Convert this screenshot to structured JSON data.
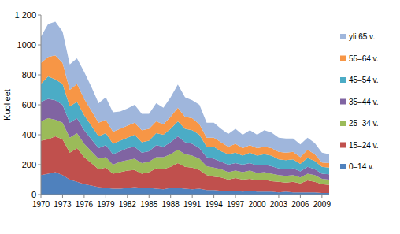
{
  "chart_data": {
    "type": "area",
    "stacked": true,
    "grid": false,
    "legend": "right",
    "y_label": "Kuolleet",
    "categories": [
      "1970",
      null,
      null,
      "1973",
      null,
      null,
      "1976",
      null,
      null,
      "1979",
      null,
      null,
      "1982",
      null,
      null,
      "1985",
      null,
      null,
      "1988",
      null,
      null,
      "1991",
      null,
      null,
      "1994",
      null,
      null,
      "1997",
      null,
      null,
      "2000",
      null,
      null,
      "2003",
      null,
      null,
      "2006",
      null,
      null,
      "2009",
      null
    ],
    "ylim": [
      0,
      1200
    ],
    "yticks": [
      0,
      200,
      400,
      600,
      800,
      1000,
      {
        "value": 1200,
        "label": "1 200"
      }
    ],
    "series": [
      {
        "name": "0–14 v.",
        "color": "#4f81bd",
        "values": [
          130,
          140,
          150,
          130,
          100,
          85,
          70,
          60,
          50,
          45,
          40,
          40,
          45,
          50,
          45,
          45,
          40,
          35,
          45,
          45,
          40,
          35,
          40,
          30,
          30,
          25,
          25,
          25,
          20,
          25,
          20,
          20,
          20,
          15,
          20,
          15,
          15,
          15,
          15,
          10,
          10
        ]
      },
      {
        "name": "15–24 v.",
        "color": "#c0504d",
        "values": [
          230,
          230,
          240,
          240,
          180,
          225,
          180,
          150,
          120,
          135,
          100,
          110,
          115,
          115,
          95,
          105,
          135,
          135,
          140,
          165,
          145,
          145,
          125,
          100,
          90,
          90,
          75,
          85,
          80,
          80,
          75,
          80,
          70,
          70,
          60,
          70,
          60,
          80,
          70,
          60,
          55
        ]
      },
      {
        "name": "25–34 v.",
        "color": "#9bbb59",
        "values": [
          130,
          140,
          110,
          110,
          100,
          100,
          90,
          80,
          70,
          70,
          60,
          70,
          70,
          75,
          70,
          70,
          75,
          80,
          85,
          90,
          85,
          80,
          75,
          60,
          60,
          55,
          50,
          50,
          50,
          55,
          50,
          50,
          50,
          45,
          45,
          45,
          40,
          45,
          45,
          35,
          35
        ]
      },
      {
        "name": "35–44 v.",
        "color": "#8064a2",
        "values": [
          130,
          130,
          130,
          120,
          100,
          100,
          90,
          80,
          70,
          80,
          70,
          70,
          80,
          80,
          70,
          70,
          80,
          70,
          80,
          90,
          80,
          80,
          70,
          60,
          60,
          50,
          50,
          50,
          50,
          50,
          50,
          50,
          50,
          45,
          45,
          45,
          40,
          45,
          40,
          35,
          35
        ]
      },
      {
        "name": "45–54 v.",
        "color": "#4bacc6",
        "values": [
          120,
          150,
          140,
          140,
          110,
          110,
          100,
          90,
          80,
          80,
          70,
          70,
          70,
          80,
          70,
          70,
          80,
          80,
          90,
          100,
          90,
          90,
          90,
          70,
          80,
          70,
          70,
          70,
          60,
          70,
          65,
          70,
          70,
          60,
          60,
          60,
          50,
          60,
          55,
          45,
          45
        ]
      },
      {
        "name": "55–64 v.",
        "color": "#f79646",
        "values": [
          140,
          130,
          160,
          140,
          110,
          120,
          110,
          100,
          90,
          90,
          80,
          80,
          80,
          80,
          80,
          80,
          80,
          70,
          80,
          90,
          80,
          80,
          70,
          60,
          60,
          60,
          50,
          60,
          50,
          50,
          50,
          50,
          50,
          50,
          50,
          50,
          45,
          55,
          45,
          30,
          30
        ]
      },
      {
        "name": "yli 65 v.",
        "color": "#9fb6dc",
        "values": [
          175,
          220,
          225,
          210,
          170,
          170,
          180,
          160,
          130,
          150,
          130,
          115,
          115,
          120,
          110,
          100,
          120,
          110,
          130,
          155,
          130,
          120,
          130,
          100,
          100,
          90,
          85,
          100,
          90,
          100,
          90,
          110,
          105,
          95,
          95,
          90,
          85,
          80,
          75,
          65,
          60
        ]
      }
    ]
  }
}
